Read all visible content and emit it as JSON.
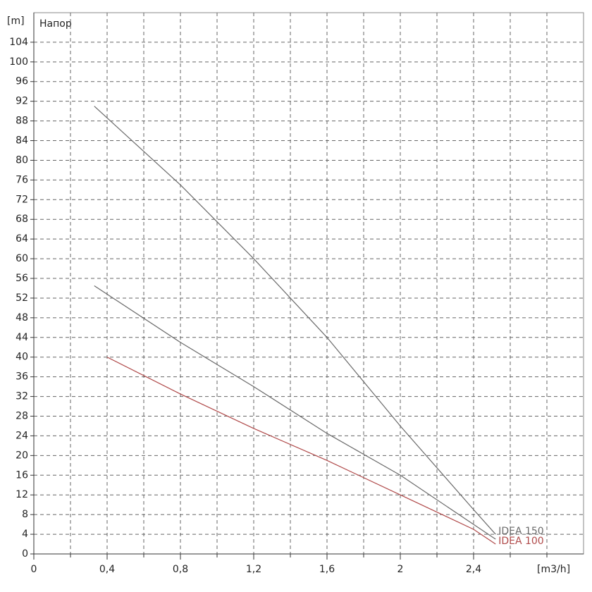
{
  "chart_data": {
    "type": "line",
    "title": "Напор",
    "y_unit": "[m]",
    "x_unit": "[m3/h]",
    "xlim": [
      0,
      3
    ],
    "ylim": [
      0,
      110
    ],
    "xticks": [
      0,
      {
        "value": 0.4,
        "label": "0,4"
      },
      {
        "value": 0.8,
        "label": "0,8"
      },
      {
        "value": 1.2,
        "label": "1,2"
      },
      {
        "value": 1.6,
        "label": "1,6"
      },
      2,
      {
        "value": 2.4,
        "label": "2,4"
      }
    ],
    "xminor": [
      0.2,
      0.6,
      1,
      1.4,
      1.8,
      2.2,
      2.6,
      2.8
    ],
    "yticks": [
      0,
      4,
      8,
      12,
      16,
      20,
      24,
      28,
      32,
      36,
      40,
      44,
      48,
      52,
      56,
      60,
      64,
      68,
      72,
      76,
      80,
      84,
      88,
      92,
      96,
      100,
      104
    ],
    "grid": true,
    "series": [
      {
        "name": "IDEA 150",
        "color": "#6a6a6a",
        "x": [
          0.33,
          0.8,
          1.2,
          1.6,
          2.0,
          2.4,
          2.52
        ],
        "values": [
          91,
          75,
          60,
          44,
          26,
          9,
          4
        ]
      },
      {
        "name": null,
        "color": "#6a6a6a",
        "x": [
          0.33,
          0.8,
          1.2,
          1.6,
          2.0,
          2.4,
          2.52
        ],
        "values": [
          54.5,
          43,
          34,
          24.5,
          16,
          6,
          3
        ]
      },
      {
        "name": "IDEA 100",
        "color": "#b04a4a",
        "x": [
          0.4,
          0.8,
          1.2,
          1.6,
          2.0,
          2.4,
          2.52
        ],
        "values": [
          40,
          32.5,
          25.5,
          19,
          12,
          5,
          2
        ]
      }
    ]
  }
}
